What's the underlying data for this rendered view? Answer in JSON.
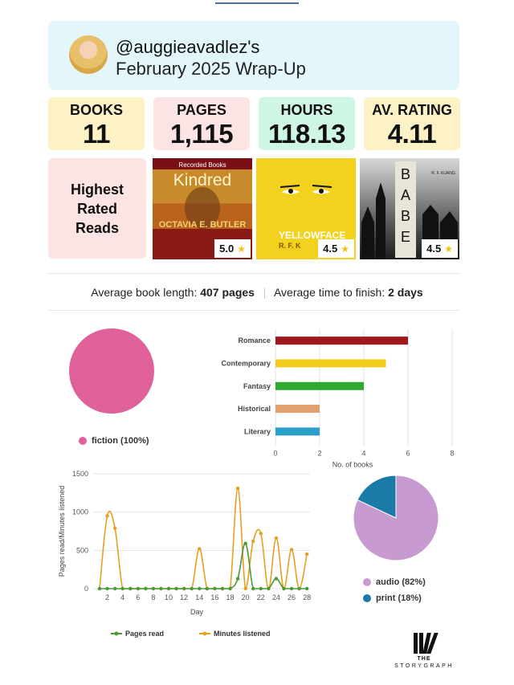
{
  "header": {
    "handle": "@auggieavadlez's",
    "subtitle": "February 2025 Wrap-Up"
  },
  "stats": [
    {
      "label": "BOOKS",
      "value": "11",
      "color": "#fdf1c6"
    },
    {
      "label": "PAGES",
      "value": "1,115",
      "color": "#fde4e4"
    },
    {
      "label": "HOURS",
      "value": "118.13",
      "color": "#cff5e5"
    },
    {
      "label": "AV. RATING",
      "value": "4.11",
      "color": "#fdf1c6"
    }
  ],
  "highest_rated": {
    "label": "Highest Rated Reads",
    "books": [
      {
        "title": "Kindred",
        "publisher": "Recorded Books",
        "author_line": "OCTAVIA E. BUTLER",
        "rating": "5.0"
      },
      {
        "title": "YELLOWFACE",
        "author_line": "R. F. K",
        "rating": "4.5"
      },
      {
        "title": "BABEL",
        "author_line": "R. F. KUANG",
        "rating": "4.5"
      }
    ]
  },
  "averages": {
    "length_label": "Average book length:",
    "length_value": "407 pages",
    "time_label": "Average time to finish:",
    "time_value": "2 days"
  },
  "chart_data": [
    {
      "type": "pie",
      "name": "fiction vs nonfiction",
      "slices": [
        {
          "label": "fiction (100%)",
          "value": 100,
          "color": "#e0609a"
        }
      ]
    },
    {
      "type": "bar",
      "orientation": "horizontal",
      "categories": [
        "Romance",
        "Contemporary",
        "Fantasy",
        "Historical",
        "Literary"
      ],
      "values": [
        6,
        5,
        4,
        2,
        2
      ],
      "colors": [
        "#a0171c",
        "#f0cc1c",
        "#2ea830",
        "#e0a070",
        "#2aa0c8"
      ],
      "xlabel": "No. of books",
      "xlim": [
        0,
        8
      ],
      "xticks": [
        "0",
        "2",
        "4",
        "6",
        "8"
      ],
      "grid": true
    },
    {
      "type": "line",
      "x": [
        1,
        2,
        3,
        4,
        5,
        6,
        7,
        8,
        9,
        10,
        11,
        12,
        13,
        14,
        15,
        16,
        17,
        18,
        19,
        20,
        21,
        22,
        23,
        24,
        25,
        26,
        27,
        28
      ],
      "xticks": [
        "2",
        "4",
        "6",
        "8",
        "10",
        "12",
        "14",
        "16",
        "18",
        "20",
        "22",
        "24",
        "26",
        "28"
      ],
      "xlabel": "Day",
      "ylabel": "Pages read/Minutes listened",
      "ylim": [
        0,
        1500
      ],
      "yticks": [
        "0",
        "500",
        "1000",
        "1500"
      ],
      "series": [
        {
          "name": "Pages read",
          "color": "#4a9a3a",
          "values": [
            0,
            0,
            0,
            0,
            0,
            0,
            0,
            0,
            0,
            0,
            0,
            0,
            0,
            0,
            0,
            0,
            0,
            0,
            130,
            590,
            0,
            0,
            0,
            130,
            0,
            0,
            0,
            0
          ]
        },
        {
          "name": "Minutes listened",
          "color": "#e6a020",
          "values": [
            0,
            950,
            790,
            0,
            0,
            0,
            0,
            0,
            0,
            0,
            0,
            0,
            0,
            520,
            0,
            0,
            0,
            0,
            1310,
            0,
            620,
            720,
            0,
            660,
            0,
            510,
            0,
            450
          ]
        }
      ],
      "legend": "bottom"
    },
    {
      "type": "pie",
      "name": "format",
      "slices": [
        {
          "label": "audio (82%)",
          "value": 82,
          "color": "#c79bd1"
        },
        {
          "label": "print (18%)",
          "value": 18,
          "color": "#1a7aa8"
        }
      ]
    }
  ],
  "logo": {
    "line1": "THE",
    "line2": "STORYGRAPH"
  }
}
